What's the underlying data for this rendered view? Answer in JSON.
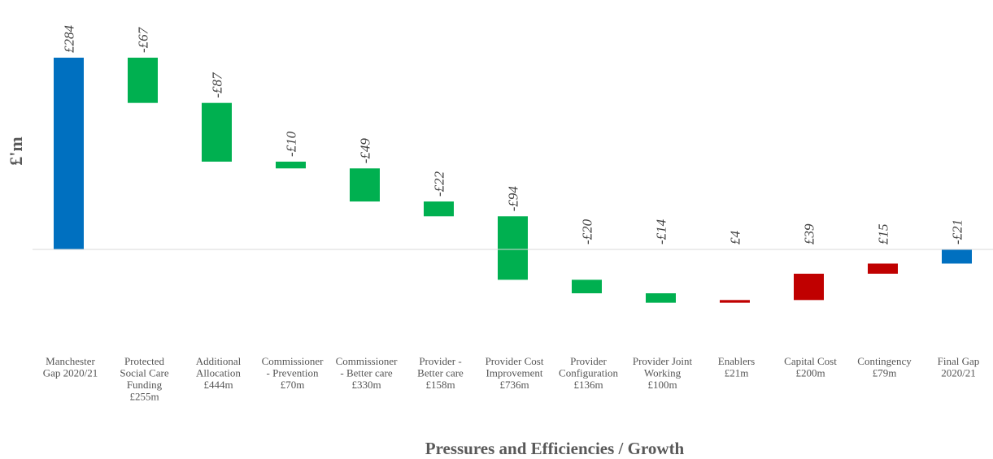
{
  "chart_data": {
    "type": "bar",
    "subtype": "waterfall",
    "ylabel": "£'m",
    "xlabel": "Pressures and Efficiencies / Growth",
    "categories": [
      [
        "Manchester",
        "Gap 2020/21"
      ],
      [
        "Protected",
        "Social Care",
        "Funding",
        "£255m"
      ],
      [
        "Additional",
        "Allocation",
        "£444m"
      ],
      [
        "Commissioner",
        "- Prevention",
        "£70m"
      ],
      [
        "Commissioner",
        "- Better care",
        "£330m"
      ],
      [
        "Provider -",
        "Better care",
        "£158m"
      ],
      [
        "Provider Cost",
        "Improvement",
        "£736m"
      ],
      [
        "Provider",
        "Configuration",
        "£136m"
      ],
      [
        "Provider Joint",
        "Working",
        "£100m"
      ],
      [
        "Enablers",
        "£21m"
      ],
      [
        "Capital Cost",
        "£200m"
      ],
      [
        "Contingency",
        "£79m"
      ],
      [
        "Final Gap",
        "2020/21"
      ]
    ],
    "value_labels": [
      "£284",
      "-£67",
      "-£87",
      "-£10",
      "-£49",
      "-£22",
      "-£94",
      "-£20",
      "-£14",
      "£4",
      "£39",
      "£15",
      "-£21"
    ],
    "values": [
      284,
      -67,
      -87,
      -10,
      -49,
      -22,
      -94,
      -20,
      -14,
      4,
      39,
      15,
      -21
    ],
    "bar_kind": [
      "total",
      "decrease",
      "decrease",
      "decrease",
      "decrease",
      "decrease",
      "decrease",
      "decrease",
      "decrease",
      "increase",
      "increase",
      "increase",
      "total"
    ],
    "colors": {
      "total": "#0070C0",
      "decrease": "#00B050",
      "increase": "#C00000",
      "baseline": "#d9d9d9"
    },
    "ylim": [
      -120,
      284
    ],
    "grid": false,
    "legend": "none"
  }
}
